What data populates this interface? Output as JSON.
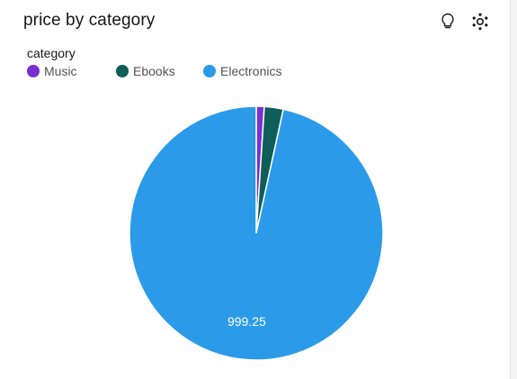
{
  "header": {
    "title": "price by category",
    "icons": [
      "lightbulb-icon",
      "settings-dots-icon"
    ]
  },
  "legend": {
    "title": "category",
    "items": [
      {
        "label": "Music",
        "color": "#7a2fd0"
      },
      {
        "label": "Ebooks",
        "color": "#0f5e5a"
      },
      {
        "label": "Electronics",
        "color": "#2b9be9"
      }
    ]
  },
  "chart_data": {
    "type": "pie",
    "categories": [
      "Music",
      "Ebooks",
      "Electronics"
    ],
    "values": [
      10.5,
      25,
      999.25
    ],
    "data_labels": [
      "",
      "",
      "999.25"
    ],
    "colors": [
      "#7a2fd0",
      "#0f5e5a",
      "#2b9be9"
    ],
    "title": "price by category",
    "legend_title": "category",
    "legend_placement": "top-left"
  }
}
